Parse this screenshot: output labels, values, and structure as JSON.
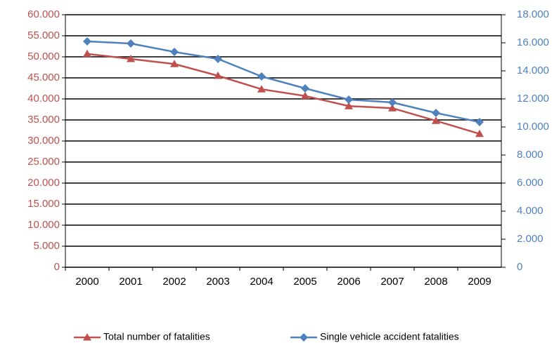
{
  "chart_data": {
    "type": "line",
    "categories": [
      "2000",
      "2001",
      "2002",
      "2003",
      "2004",
      "2005",
      "2006",
      "2007",
      "2008",
      "2009"
    ],
    "series": [
      {
        "name": "Total number of fatalities",
        "color": "#c0504d",
        "marker": "triangle",
        "values": [
          50700,
          49500,
          48300,
          45500,
          42300,
          40700,
          38300,
          37800,
          34800,
          31700
        ]
      },
      {
        "name": "Single vehicle accident fatalities",
        "color": "#4f81bd",
        "marker": "diamond",
        "axis": "y2",
        "values": [
          16100,
          15950,
          15350,
          14850,
          13600,
          12750,
          11950,
          11750,
          11000,
          10350
        ]
      }
    ],
    "ylim": [
      0,
      60000
    ],
    "yticks": [
      0,
      {
        "value": 5000,
        "label": "5.000"
      },
      {
        "value": 10000,
        "label": "10.000"
      },
      {
        "value": 15000,
        "label": "15.000"
      },
      {
        "value": 20000,
        "label": "20.000"
      },
      {
        "value": 25000,
        "label": "25.000"
      },
      {
        "value": 30000,
        "label": "30.000"
      },
      {
        "value": 35000,
        "label": "35.000"
      },
      {
        "value": 40000,
        "label": "40.000"
      },
      {
        "value": 45000,
        "label": "45.000"
      },
      {
        "value": 50000,
        "label": "50.000"
      },
      {
        "value": 55000,
        "label": "55.000"
      },
      {
        "value": 60000,
        "label": "60.000"
      }
    ],
    "y2lim": [
      0,
      18000
    ],
    "y2ticks": [
      0,
      {
        "value": 2000,
        "label": "2.000"
      },
      {
        "value": 4000,
        "label": "4.000"
      },
      {
        "value": 6000,
        "label": "6.000"
      },
      {
        "value": 8000,
        "label": "8.000"
      },
      {
        "value": 10000,
        "label": "10.000"
      },
      {
        "value": 12000,
        "label": "12.000"
      },
      {
        "value": 14000,
        "label": "14.000"
      },
      {
        "value": 16000,
        "label": "16.000"
      },
      {
        "value": 18000,
        "label": "18.000"
      }
    ],
    "grid": true,
    "legend": "bottom"
  }
}
